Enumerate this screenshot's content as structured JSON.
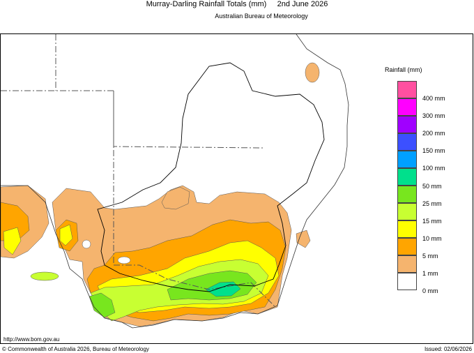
{
  "header": {
    "title": "Murray-Darling Rainfall Totals (mm)     2nd June 2026",
    "subtitle": "Australian Bureau of Meteorology"
  },
  "legend": {
    "title": "Rainfall (mm)",
    "items": [
      {
        "label": "400 mm",
        "color": "#ff50a0"
      },
      {
        "label": "300 mm",
        "color": "#ff00ff"
      },
      {
        "label": "200 mm",
        "color": "#a000ff"
      },
      {
        "label": "150 mm",
        "color": "#3c50ff"
      },
      {
        "label": "100 mm",
        "color": "#00a0ff"
      },
      {
        "label": "50 mm",
        "color": "#00e08c"
      },
      {
        "label": "25 mm",
        "color": "#78e61e"
      },
      {
        "label": "15 mm",
        "color": "#c8ff32"
      },
      {
        "label": "10 mm",
        "color": "#ffff00"
      },
      {
        "label": "5 mm",
        "color": "#ffa500"
      },
      {
        "label": "1 mm",
        "color": "#f5b46e"
      },
      {
        "label": "0 mm",
        "color": "#ffffff"
      }
    ]
  },
  "footer": {
    "url": "http://www.bom.gov.au",
    "copyright": "© Commonwealth of Australia 2026, Bureau of Meteorology",
    "issued": "Issued: 02/06/2026"
  }
}
